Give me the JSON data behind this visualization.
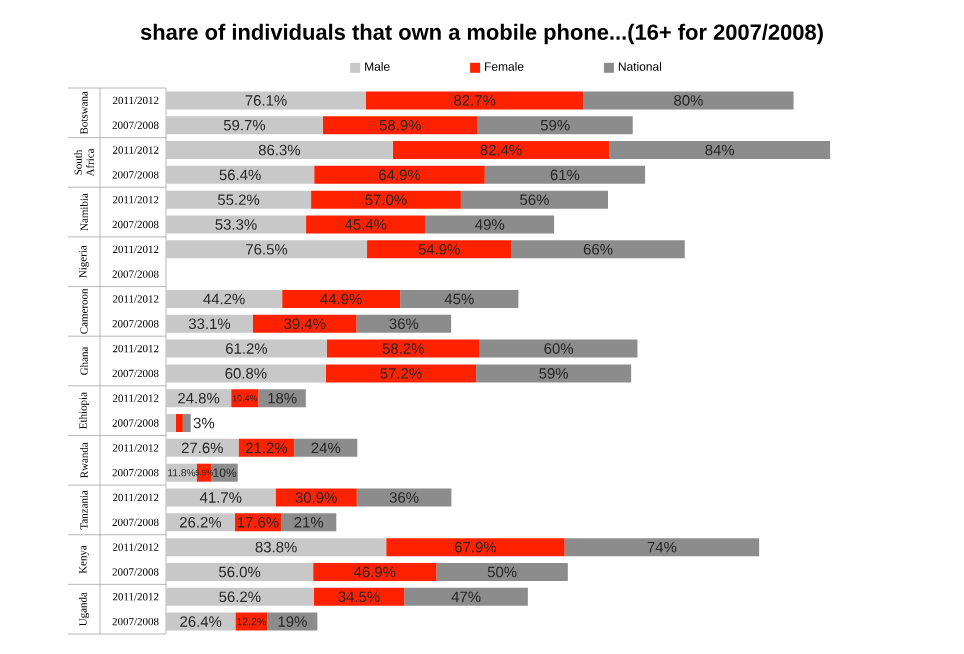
{
  "chart_data": {
    "type": "bar",
    "orientation": "horizontal",
    "stacked": true,
    "legend": "top",
    "title": "share of individuals that own a mobile phone...(16+ for 2007/2008)",
    "categories": [
      "2011/2012",
      "2007/2008",
      "2011/2012",
      "2007/2008",
      "2011/2012",
      "2007/2008",
      "2011/2012",
      "2007/2008",
      "2011/2012",
      "2007/2008",
      "2011/2012",
      "2007/2008",
      "2011/2012",
      "2007/2008",
      "2011/2012",
      "2007/2008",
      "2011/2012",
      "2007/2008",
      "2011/2012",
      "2007/2008",
      "2011/2012",
      "2007/2008"
    ],
    "annotations": [
      "Botswana",
      "South Africa",
      "Namibia",
      "Nigeria",
      "Cameroon",
      "Ghana",
      "Ethiopia",
      "Rwanda",
      "Tanzania",
      "Kenya",
      "Uganda"
    ],
    "series": [
      {
        "name": "Male",
        "color": "#c8c8c8",
        "values": [
          76.1,
          59.7,
          86.3,
          56.4,
          55.2,
          53.3,
          76.5,
          null,
          44.2,
          33.1,
          61.2,
          60.8,
          24.8,
          3.8,
          27.6,
          11.8,
          41.7,
          26.2,
          83.8,
          56.0,
          56.2,
          26.4
        ],
        "value_labels": [
          "76.1%",
          "59.7%",
          "86.3%",
          "56.4%",
          "55.2%",
          "53.3%",
          "76.5%",
          null,
          "44.2%",
          "33.1%",
          "61.2%",
          "60.8%",
          "24.8%",
          null,
          "27.6%",
          "11.8%",
          "41.7%",
          "26.2%",
          "83.8%",
          "56.0%",
          "56.2%",
          "26.4%"
        ]
      },
      {
        "name": "Female",
        "color": "#ff2200",
        "values": [
          82.7,
          58.9,
          82.4,
          64.9,
          57.0,
          45.4,
          54.9,
          null,
          44.9,
          39.4,
          58.2,
          57.2,
          10.4,
          2.6,
          21.2,
          5.5,
          30.9,
          17.6,
          67.9,
          46.9,
          34.5,
          12.2
        ],
        "value_labels": [
          "82.7%",
          "58.9%",
          "82.4%",
          "64.9%",
          "57.0%",
          "45.4%",
          "54.9%",
          null,
          "44.9%",
          "39.4%",
          "58.2%",
          "57.2%",
          "10.4%",
          null,
          "21.2%",
          "5.5%",
          "30.9%",
          "17.6%",
          "67.9%",
          "46.9%",
          "34.5%",
          "12.2%"
        ]
      },
      {
        "name": "National",
        "color": "#8c8c8c",
        "values": [
          80,
          59,
          84,
          61,
          56,
          49,
          66,
          null,
          45,
          36,
          60,
          59,
          18,
          3,
          24,
          10,
          36,
          21,
          74,
          50,
          47,
          19
        ],
        "value_labels": [
          "80%",
          "59%",
          "84%",
          "61%",
          "56%",
          "49%",
          "66%",
          null,
          "45%",
          "36%",
          "60%",
          "59%",
          "18%",
          "3%",
          "24%",
          "10%",
          "36%",
          "21%",
          "74%",
          "50%",
          "47%",
          "19%"
        ]
      }
    ]
  }
}
